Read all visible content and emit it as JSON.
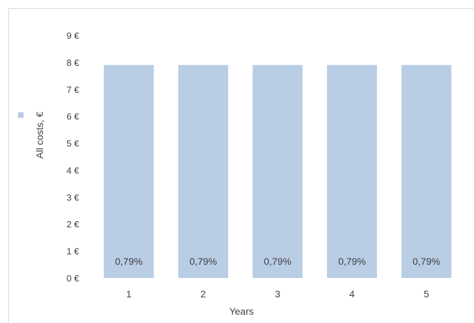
{
  "chart_data": {
    "type": "bar",
    "categories": [
      "1",
      "2",
      "3",
      "4",
      "5"
    ],
    "values": [
      7.9,
      7.9,
      7.9,
      7.9,
      7.9
    ],
    "data_labels": [
      "0,79%",
      "0,79%",
      "0,79%",
      "0,79%",
      "0,79%"
    ],
    "yticks": [
      0,
      1,
      2,
      3,
      4,
      5,
      6,
      7,
      8,
      9
    ],
    "ytick_labels": [
      "0 €",
      "1 €",
      "2 €",
      "3 €",
      "4 €",
      "5 €",
      "6 €",
      "7 €",
      "8 €",
      "9 €"
    ],
    "ylim": [
      0,
      9
    ],
    "xlabel": "Years",
    "ylabel": "All costs, €",
    "title": "",
    "grid": false,
    "legend": {
      "placement": "left",
      "marker_color": "#b9cde5"
    },
    "colors": {
      "bar": "#b9cde5",
      "frame": "#d9d9d9",
      "text": "#404040"
    }
  }
}
